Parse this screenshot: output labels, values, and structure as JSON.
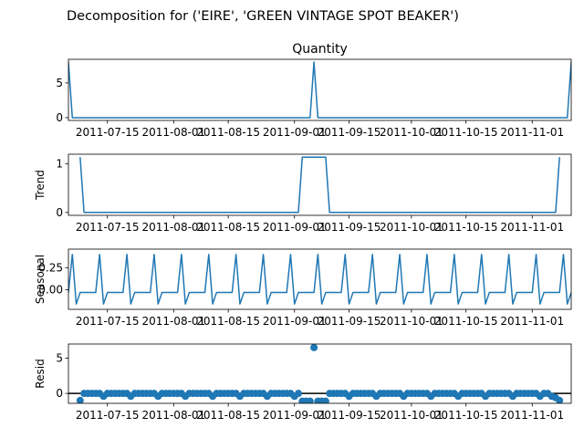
{
  "figure": {
    "suptitle": "Decomposition for ('EIRE', 'GREEN VINTAGE SPOT BEAKER')"
  },
  "colors": {
    "series": "#1f77b4",
    "axis": "#000000",
    "zero_line": "#000000"
  },
  "chart_data": [
    {
      "type": "line",
      "title": "Quantity",
      "ylabel": "",
      "xlim": [
        "2011-07-05",
        "2011-11-11"
      ],
      "ylim": [
        -0.4,
        8.4
      ],
      "yticks": [
        0,
        5
      ],
      "xticks": [
        "2011-07-15",
        "2011-08-01",
        "2011-08-15",
        "2011-09-01",
        "2011-09-15",
        "2011-10-01",
        "2011-10-15",
        "2011-11-01"
      ],
      "points": [
        {
          "x": "2011-07-05",
          "y": 8
        },
        {
          "x": "2011-07-06",
          "y": 0
        },
        {
          "x": "2011-09-05",
          "y": 0
        },
        {
          "x": "2011-09-06",
          "y": 8
        },
        {
          "x": "2011-09-07",
          "y": 0
        },
        {
          "x": "2011-11-10",
          "y": 0
        },
        {
          "x": "2011-11-11",
          "y": 8
        }
      ]
    },
    {
      "type": "line",
      "title": "",
      "ylabel": "Trend",
      "xlim": [
        "2011-07-05",
        "2011-11-11"
      ],
      "ylim": [
        -0.06,
        1.2
      ],
      "yticks": [
        0,
        1
      ],
      "xticks": [
        "2011-07-15",
        "2011-08-01",
        "2011-08-15",
        "2011-09-01",
        "2011-09-15",
        "2011-10-01",
        "2011-10-15",
        "2011-11-01"
      ],
      "points": [
        {
          "x": "2011-07-08",
          "y": 1.14
        },
        {
          "x": "2011-07-09",
          "y": 0
        },
        {
          "x": "2011-09-02",
          "y": 0
        },
        {
          "x": "2011-09-03",
          "y": 1.14
        },
        {
          "x": "2011-09-09",
          "y": 1.14
        },
        {
          "x": "2011-09-10",
          "y": 0
        },
        {
          "x": "2011-11-07",
          "y": 0
        },
        {
          "x": "2011-11-08",
          "y": 1.14
        }
      ]
    },
    {
      "type": "line",
      "title": "",
      "ylabel": "Seasonal",
      "xlim": [
        "2011-07-05",
        "2011-11-11"
      ],
      "ylim": [
        -0.22,
        0.46
      ],
      "yticks": [
        0.0,
        0.25
      ],
      "ytick_labels": [
        "0.00",
        "0.25"
      ],
      "xticks": [
        "2011-07-15",
        "2011-08-01",
        "2011-08-15",
        "2011-09-01",
        "2011-09-15",
        "2011-10-01",
        "2011-10-15",
        "2011-11-01"
      ],
      "period_days": 7,
      "pattern": [
        -0.03,
        0.4,
        -0.16,
        -0.03,
        -0.03,
        -0.03,
        -0.03
      ]
    },
    {
      "type": "scatter",
      "title": "",
      "ylabel": "Resid",
      "xlim": [
        "2011-07-05",
        "2011-11-11"
      ],
      "ylim": [
        -1.4,
        7.0
      ],
      "yticks": [
        0,
        5
      ],
      "xticks": [
        "2011-07-15",
        "2011-08-01",
        "2011-08-15",
        "2011-09-01",
        "2011-09-15",
        "2011-10-01",
        "2011-10-15",
        "2011-11-01"
      ],
      "zero_line": true,
      "points": [
        {
          "x": "2011-07-08",
          "y": -1.0
        },
        {
          "x": "2011-07-09",
          "y": 0.0
        },
        {
          "x": "2011-07-10",
          "y": 0.0
        },
        {
          "x": "2011-07-11",
          "y": 0.0
        },
        {
          "x": "2011-07-12",
          "y": 0.0
        },
        {
          "x": "2011-07-13",
          "y": 0.0
        },
        {
          "x": "2011-07-14",
          "y": -0.4
        },
        {
          "x": "2011-07-15",
          "y": 0.0
        },
        {
          "x": "2011-07-16",
          "y": 0.0
        },
        {
          "x": "2011-07-17",
          "y": 0.0
        },
        {
          "x": "2011-07-18",
          "y": 0.0
        },
        {
          "x": "2011-07-19",
          "y": 0.0
        },
        {
          "x": "2011-07-20",
          "y": 0.0
        },
        {
          "x": "2011-07-21",
          "y": -0.4
        },
        {
          "x": "2011-07-22",
          "y": 0.0
        },
        {
          "x": "2011-07-23",
          "y": 0.0
        },
        {
          "x": "2011-07-24",
          "y": 0.0
        },
        {
          "x": "2011-07-25",
          "y": 0.0
        },
        {
          "x": "2011-07-26",
          "y": 0.0
        },
        {
          "x": "2011-07-27",
          "y": 0.0
        },
        {
          "x": "2011-07-28",
          "y": -0.4
        },
        {
          "x": "2011-07-29",
          "y": 0.0
        },
        {
          "x": "2011-07-30",
          "y": 0.0
        },
        {
          "x": "2011-07-31",
          "y": 0.0
        },
        {
          "x": "2011-08-01",
          "y": 0.0
        },
        {
          "x": "2011-08-02",
          "y": 0.0
        },
        {
          "x": "2011-08-03",
          "y": 0.0
        },
        {
          "x": "2011-08-04",
          "y": -0.4
        },
        {
          "x": "2011-08-05",
          "y": 0.0
        },
        {
          "x": "2011-08-06",
          "y": 0.0
        },
        {
          "x": "2011-08-07",
          "y": 0.0
        },
        {
          "x": "2011-08-08",
          "y": 0.0
        },
        {
          "x": "2011-08-09",
          "y": 0.0
        },
        {
          "x": "2011-08-10",
          "y": 0.0
        },
        {
          "x": "2011-08-11",
          "y": -0.4
        },
        {
          "x": "2011-08-12",
          "y": 0.0
        },
        {
          "x": "2011-08-13",
          "y": 0.0
        },
        {
          "x": "2011-08-14",
          "y": 0.0
        },
        {
          "x": "2011-08-15",
          "y": 0.0
        },
        {
          "x": "2011-08-16",
          "y": 0.0
        },
        {
          "x": "2011-08-17",
          "y": 0.0
        },
        {
          "x": "2011-08-18",
          "y": -0.4
        },
        {
          "x": "2011-08-19",
          "y": 0.0
        },
        {
          "x": "2011-08-20",
          "y": 0.0
        },
        {
          "x": "2011-08-21",
          "y": 0.0
        },
        {
          "x": "2011-08-22",
          "y": 0.0
        },
        {
          "x": "2011-08-23",
          "y": 0.0
        },
        {
          "x": "2011-08-24",
          "y": 0.0
        },
        {
          "x": "2011-08-25",
          "y": -0.4
        },
        {
          "x": "2011-08-26",
          "y": 0.0
        },
        {
          "x": "2011-08-27",
          "y": 0.0
        },
        {
          "x": "2011-08-28",
          "y": 0.0
        },
        {
          "x": "2011-08-29",
          "y": 0.0
        },
        {
          "x": "2011-08-30",
          "y": 0.0
        },
        {
          "x": "2011-08-31",
          "y": 0.0
        },
        {
          "x": "2011-09-01",
          "y": -0.4
        },
        {
          "x": "2011-09-02",
          "y": 0.0
        },
        {
          "x": "2011-09-03",
          "y": -1.1
        },
        {
          "x": "2011-09-04",
          "y": -1.1
        },
        {
          "x": "2011-09-05",
          "y": -1.1
        },
        {
          "x": "2011-09-06",
          "y": 6.5
        },
        {
          "x": "2011-09-07",
          "y": -1.1
        },
        {
          "x": "2011-09-08",
          "y": -1.1
        },
        {
          "x": "2011-09-09",
          "y": -1.1
        },
        {
          "x": "2011-09-10",
          "y": 0.0
        },
        {
          "x": "2011-09-11",
          "y": 0.0
        },
        {
          "x": "2011-09-12",
          "y": 0.0
        },
        {
          "x": "2011-09-13",
          "y": 0.0
        },
        {
          "x": "2011-09-14",
          "y": 0.0
        },
        {
          "x": "2011-09-15",
          "y": -0.4
        },
        {
          "x": "2011-09-16",
          "y": 0.0
        },
        {
          "x": "2011-09-17",
          "y": 0.0
        },
        {
          "x": "2011-09-18",
          "y": 0.0
        },
        {
          "x": "2011-09-19",
          "y": 0.0
        },
        {
          "x": "2011-09-20",
          "y": 0.0
        },
        {
          "x": "2011-09-21",
          "y": 0.0
        },
        {
          "x": "2011-09-22",
          "y": -0.4
        },
        {
          "x": "2011-09-23",
          "y": 0.0
        },
        {
          "x": "2011-09-24",
          "y": 0.0
        },
        {
          "x": "2011-09-25",
          "y": 0.0
        },
        {
          "x": "2011-09-26",
          "y": 0.0
        },
        {
          "x": "2011-09-27",
          "y": 0.0
        },
        {
          "x": "2011-09-28",
          "y": 0.0
        },
        {
          "x": "2011-09-29",
          "y": -0.4
        },
        {
          "x": "2011-09-30",
          "y": 0.0
        },
        {
          "x": "2011-10-01",
          "y": 0.0
        },
        {
          "x": "2011-10-02",
          "y": 0.0
        },
        {
          "x": "2011-10-03",
          "y": 0.0
        },
        {
          "x": "2011-10-04",
          "y": 0.0
        },
        {
          "x": "2011-10-05",
          "y": 0.0
        },
        {
          "x": "2011-10-06",
          "y": -0.4
        },
        {
          "x": "2011-10-07",
          "y": 0.0
        },
        {
          "x": "2011-10-08",
          "y": 0.0
        },
        {
          "x": "2011-10-09",
          "y": 0.0
        },
        {
          "x": "2011-10-10",
          "y": 0.0
        },
        {
          "x": "2011-10-11",
          "y": 0.0
        },
        {
          "x": "2011-10-12",
          "y": 0.0
        },
        {
          "x": "2011-10-13",
          "y": -0.4
        },
        {
          "x": "2011-10-14",
          "y": 0.0
        },
        {
          "x": "2011-10-15",
          "y": 0.0
        },
        {
          "x": "2011-10-16",
          "y": 0.0
        },
        {
          "x": "2011-10-17",
          "y": 0.0
        },
        {
          "x": "2011-10-18",
          "y": 0.0
        },
        {
          "x": "2011-10-19",
          "y": 0.0
        },
        {
          "x": "2011-10-20",
          "y": -0.4
        },
        {
          "x": "2011-10-21",
          "y": 0.0
        },
        {
          "x": "2011-10-22",
          "y": 0.0
        },
        {
          "x": "2011-10-23",
          "y": 0.0
        },
        {
          "x": "2011-10-24",
          "y": 0.0
        },
        {
          "x": "2011-10-25",
          "y": 0.0
        },
        {
          "x": "2011-10-26",
          "y": 0.0
        },
        {
          "x": "2011-10-27",
          "y": -0.4
        },
        {
          "x": "2011-10-28",
          "y": 0.0
        },
        {
          "x": "2011-10-29",
          "y": 0.0
        },
        {
          "x": "2011-10-30",
          "y": 0.0
        },
        {
          "x": "2011-10-31",
          "y": 0.0
        },
        {
          "x": "2011-11-01",
          "y": 0.0
        },
        {
          "x": "2011-11-02",
          "y": 0.0
        },
        {
          "x": "2011-11-03",
          "y": -0.4
        },
        {
          "x": "2011-11-04",
          "y": 0.0
        },
        {
          "x": "2011-11-05",
          "y": 0.0
        },
        {
          "x": "2011-11-06",
          "y": -0.4
        },
        {
          "x": "2011-11-07",
          "y": -0.6
        },
        {
          "x": "2011-11-08",
          "y": -1.0
        }
      ]
    }
  ]
}
